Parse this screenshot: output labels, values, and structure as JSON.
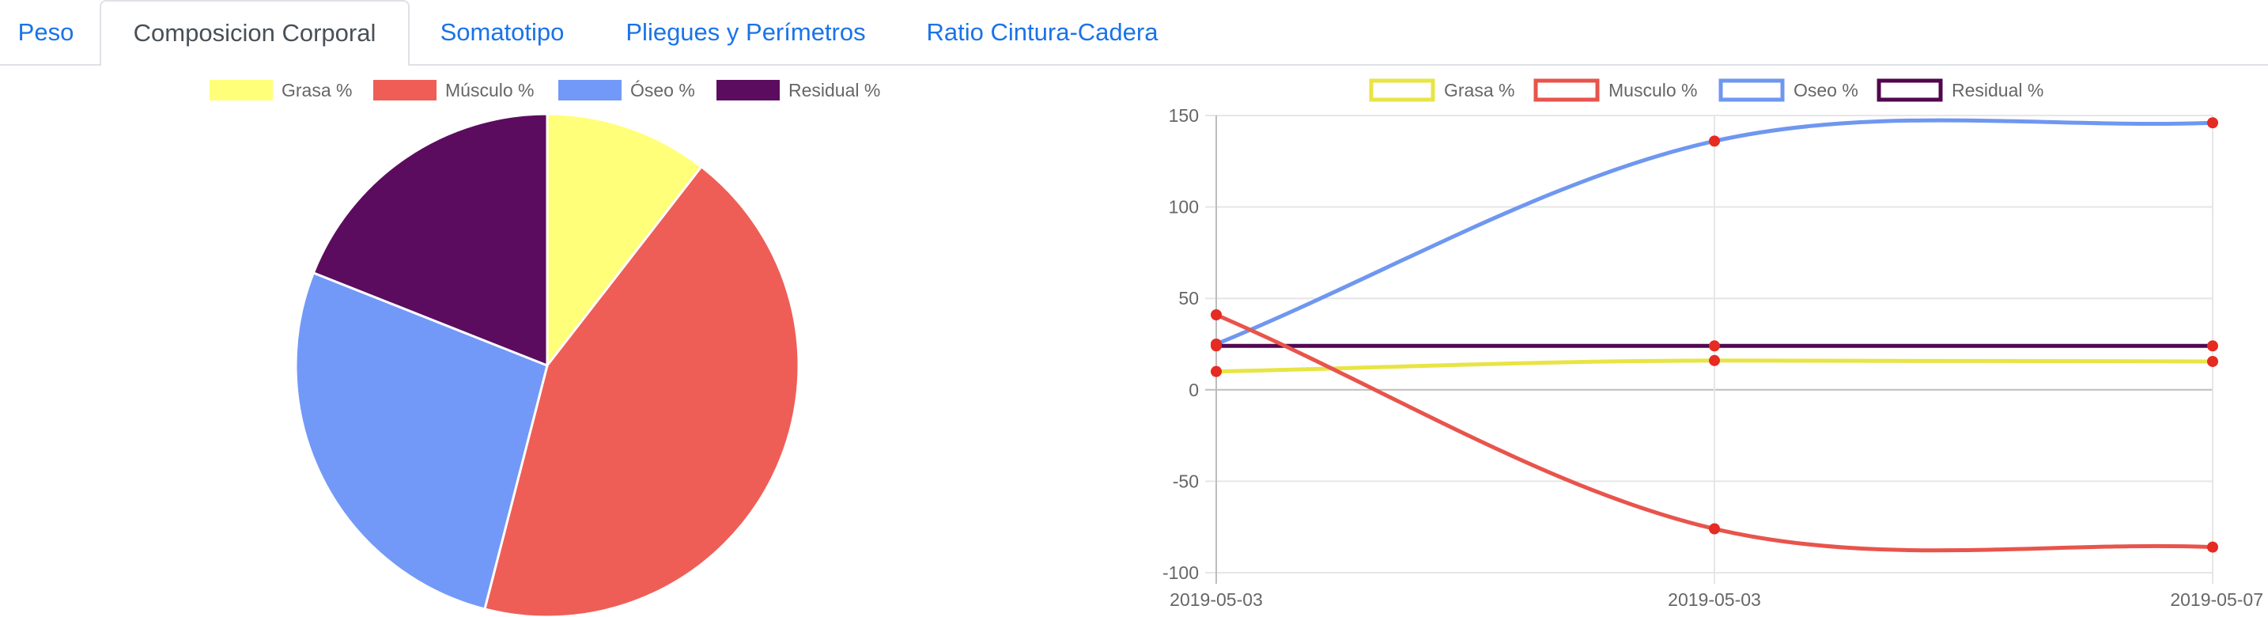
{
  "tabs": [
    {
      "label": "Peso",
      "active": false
    },
    {
      "label": "Composicion Corporal",
      "active": true
    },
    {
      "label": "Somatotipo",
      "active": false
    },
    {
      "label": "Pliegues y Perímetros",
      "active": false
    },
    {
      "label": "Ratio Cintura-Cadera",
      "active": false
    }
  ],
  "colors": {
    "tab_link": "#1a73e8",
    "tab_active": "#495057",
    "grasa": "#ffff7a",
    "musculo": "#ee5e57",
    "oseo": "#7299f8",
    "residual": "#5c0c5e",
    "line_grasa": "#e8e445",
    "line_musculo": "#e8544c",
    "line_oseo": "#6f97f0",
    "line_residual": "#52074f",
    "point": "#e52b22"
  },
  "chart_data": [
    {
      "type": "pie",
      "legend": [
        "Grasa %",
        "Músculo %",
        "Óseo %",
        "Residual %"
      ],
      "legend_position": "top",
      "values": [
        10.5,
        43.5,
        27,
        19
      ]
    },
    {
      "type": "line",
      "legend": [
        "Grasa %",
        "Musculo %",
        "Oseo %",
        "Residual %"
      ],
      "legend_position": "top",
      "x": [
        "2019-05-03",
        "2019-05-03",
        "2019-05-07"
      ],
      "series": [
        {
          "name": "Grasa %",
          "values": [
            10,
            16,
            15.5
          ]
        },
        {
          "name": "Musculo %",
          "values": [
            41,
            -76,
            -86
          ]
        },
        {
          "name": "Oseo %",
          "values": [
            25,
            136,
            146
          ]
        },
        {
          "name": "Residual %",
          "values": [
            24,
            24,
            24
          ]
        }
      ],
      "ylim": [
        -100,
        150
      ],
      "yticks": [
        150,
        100,
        50,
        0,
        -50,
        -100
      ],
      "grid": true,
      "curve": "smooth"
    }
  ]
}
